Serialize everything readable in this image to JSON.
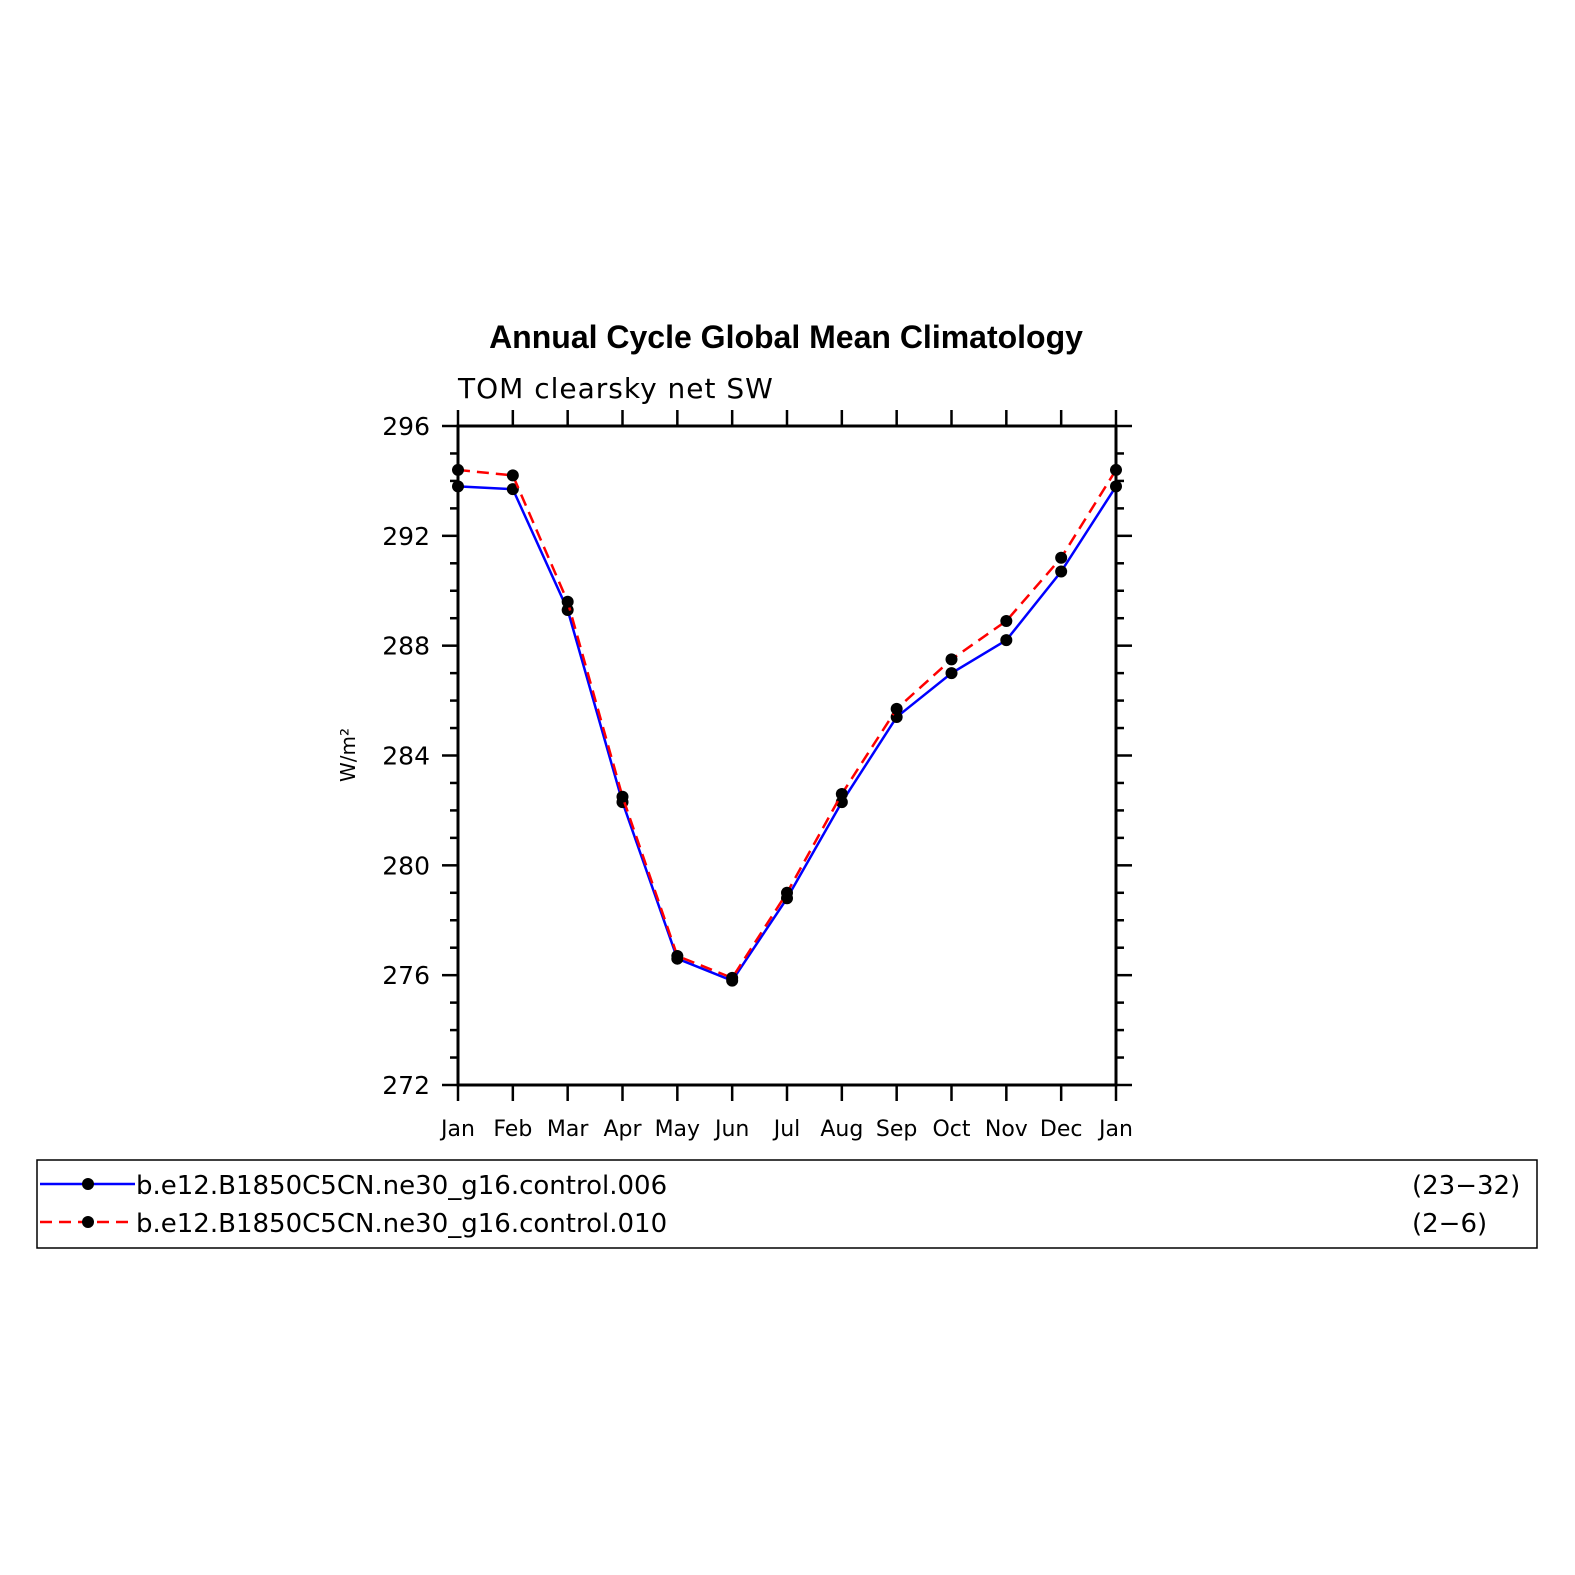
{
  "chart_data": {
    "type": "line",
    "title": "Annual Cycle Global Mean Climatology",
    "subtitle": "TOM clearsky net SW",
    "xlabel": "",
    "ylabel": "W/m²",
    "ylim": [
      272,
      296
    ],
    "yticks": [
      "272",
      "276",
      "280",
      "284",
      "288",
      "292",
      "296"
    ],
    "categories": [
      "Jan",
      "Feb",
      "Mar",
      "Apr",
      "May",
      "Jun",
      "Jul",
      "Aug",
      "Sep",
      "Oct",
      "Nov",
      "Dec",
      "Jan"
    ],
    "series": [
      {
        "name": "b.e12.B1850C5CN.ne30_g16.control.006",
        "years": "(23−32)",
        "color": "#0000ff",
        "style": "solid",
        "values": [
          293.8,
          293.7,
          289.3,
          282.3,
          276.6,
          275.8,
          278.8,
          282.3,
          285.4,
          287.0,
          288.2,
          290.7,
          293.8
        ]
      },
      {
        "name": "b.e12.B1850C5CN.ne30_g16.control.010",
        "years": "(2−6)",
        "color": "#ff0000",
        "style": "dashed",
        "values": [
          294.4,
          294.2,
          289.6,
          282.5,
          276.7,
          275.9,
          279.0,
          282.6,
          285.7,
          287.5,
          288.9,
          291.2,
          294.4
        ]
      }
    ],
    "marker_color": "#000000",
    "grid": false,
    "legend_position": "bottom"
  }
}
